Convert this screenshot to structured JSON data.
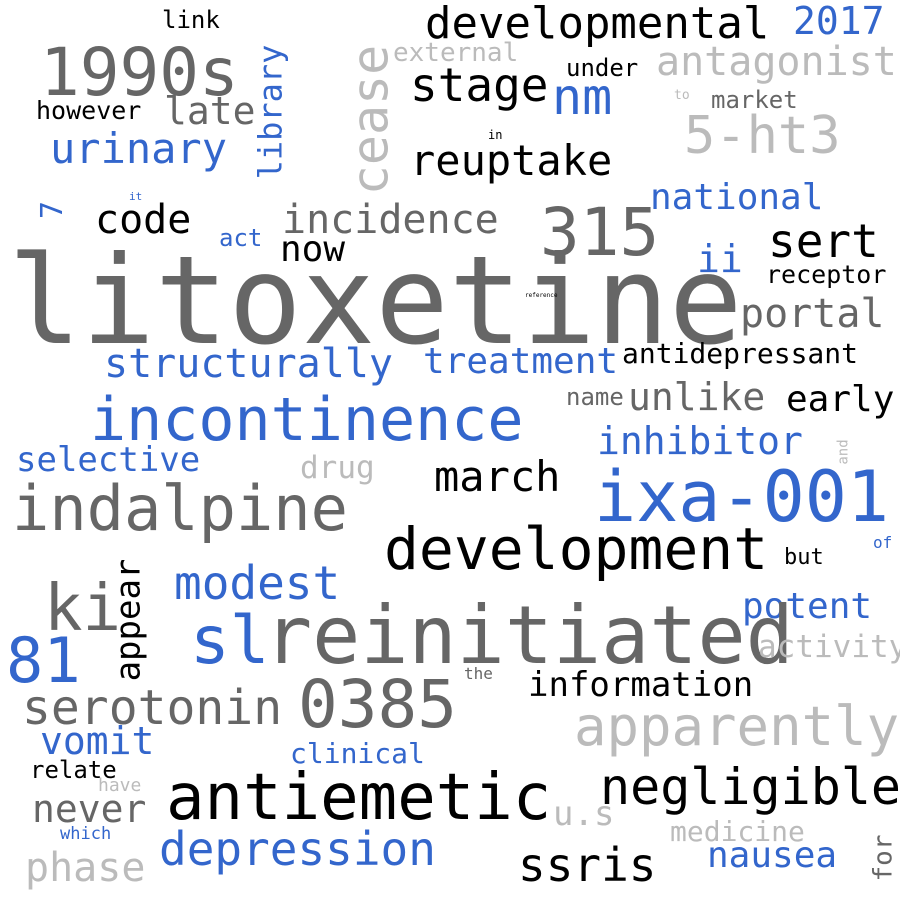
{
  "colors": {
    "dark": "#666666",
    "black": "#000000",
    "blue": "#3366cc",
    "light": "#bbbbbb"
  },
  "words": [
    {
      "id": "litoxetine",
      "text": "litoxetine",
      "color": "dark"
    },
    {
      "id": "developmental",
      "text": "developmental",
      "color": "black"
    },
    {
      "id": "1990s",
      "text": "1990s",
      "color": "dark"
    },
    {
      "id": "2017",
      "text": "2017",
      "color": "blue"
    },
    {
      "id": "link",
      "text": "link",
      "color": "black"
    },
    {
      "id": "external",
      "text": "external",
      "color": "light"
    },
    {
      "id": "antagonist",
      "text": "antagonist",
      "color": "light"
    },
    {
      "id": "stage",
      "text": "stage",
      "color": "black"
    },
    {
      "id": "nm",
      "text": "nm",
      "color": "blue"
    },
    {
      "id": "under",
      "text": "under",
      "color": "black"
    },
    {
      "id": "to",
      "text": "to",
      "color": "light"
    },
    {
      "id": "market",
      "text": "market",
      "color": "dark"
    },
    {
      "id": "however",
      "text": "however",
      "color": "black"
    },
    {
      "id": "late",
      "text": "late",
      "color": "dark"
    },
    {
      "id": "5-ht3",
      "text": "5-ht3",
      "color": "light"
    },
    {
      "id": "library",
      "text": "library",
      "color": "blue"
    },
    {
      "id": "cease",
      "text": "cease",
      "color": "light"
    },
    {
      "id": "urinary",
      "text": "urinary",
      "color": "blue"
    },
    {
      "id": "in",
      "text": "in",
      "color": "black"
    },
    {
      "id": "reuptake",
      "text": "reuptake",
      "color": "black"
    },
    {
      "id": "it",
      "text": "it",
      "color": "blue"
    },
    {
      "id": "national",
      "text": "national",
      "color": "blue"
    },
    {
      "id": "7",
      "text": "7",
      "color": "blue"
    },
    {
      "id": "code",
      "text": "code",
      "color": "black"
    },
    {
      "id": "incidence",
      "text": "incidence",
      "color": "dark"
    },
    {
      "id": "315",
      "text": "315",
      "color": "dark"
    },
    {
      "id": "sert",
      "text": "sert",
      "color": "black"
    },
    {
      "id": "act",
      "text": "act",
      "color": "blue"
    },
    {
      "id": "now",
      "text": "now",
      "color": "black"
    },
    {
      "id": "ii",
      "text": "ii",
      "color": "blue"
    },
    {
      "id": "receptor",
      "text": "receptor",
      "color": "black"
    },
    {
      "id": "reference",
      "text": "reference",
      "color": "black"
    },
    {
      "id": "portal",
      "text": "portal",
      "color": "dark"
    },
    {
      "id": "structurally",
      "text": "structurally",
      "color": "blue"
    },
    {
      "id": "treatment",
      "text": "treatment",
      "color": "blue"
    },
    {
      "id": "antidepressant",
      "text": "antidepressant",
      "color": "black"
    },
    {
      "id": "name",
      "text": "name",
      "color": "dark"
    },
    {
      "id": "unlike",
      "text": "unlike",
      "color": "dark"
    },
    {
      "id": "early",
      "text": "early",
      "color": "black"
    },
    {
      "id": "incontinence",
      "text": "incontinence",
      "color": "blue"
    },
    {
      "id": "inhibitor",
      "text": "inhibitor",
      "color": "blue"
    },
    {
      "id": "and",
      "text": "and",
      "color": "light"
    },
    {
      "id": "selective",
      "text": "selective",
      "color": "blue"
    },
    {
      "id": "drug",
      "text": "drug",
      "color": "light"
    },
    {
      "id": "march",
      "text": "march",
      "color": "black"
    },
    {
      "id": "indalpine",
      "text": "indalpine",
      "color": "dark"
    },
    {
      "id": "ixa-001",
      "text": "ixa-001",
      "color": "blue"
    },
    {
      "id": "development",
      "text": "development",
      "color": "black"
    },
    {
      "id": "but",
      "text": "but",
      "color": "black"
    },
    {
      "id": "of",
      "text": "of",
      "color": "blue"
    },
    {
      "id": "ki",
      "text": "ki",
      "color": "dark"
    },
    {
      "id": "appear",
      "text": "appear",
      "color": "black"
    },
    {
      "id": "modest",
      "text": "modest",
      "color": "blue"
    },
    {
      "id": "potent",
      "text": "potent",
      "color": "blue"
    },
    {
      "id": "81",
      "text": "81",
      "color": "blue"
    },
    {
      "id": "sl",
      "text": "sl",
      "color": "blue"
    },
    {
      "id": "reinitiated",
      "text": "reinitiated",
      "color": "dark"
    },
    {
      "id": "activity",
      "text": "activity",
      "color": "light"
    },
    {
      "id": "the",
      "text": "the",
      "color": "dark"
    },
    {
      "id": "information",
      "text": "information",
      "color": "black"
    },
    {
      "id": "serotonin",
      "text": "serotonin",
      "color": "dark"
    },
    {
      "id": "0385",
      "text": "0385",
      "color": "dark"
    },
    {
      "id": "apparently",
      "text": "apparently",
      "color": "light"
    },
    {
      "id": "vomit",
      "text": "vomit",
      "color": "blue"
    },
    {
      "id": "clinical",
      "text": "clinical",
      "color": "blue"
    },
    {
      "id": "relate",
      "text": "relate",
      "color": "black"
    },
    {
      "id": "have",
      "text": "have",
      "color": "light"
    },
    {
      "id": "antiemetic",
      "text": "antiemetic",
      "color": "black"
    },
    {
      "id": "negligible",
      "text": "negligible",
      "color": "black"
    },
    {
      "id": "never",
      "text": "never",
      "color": "dark"
    },
    {
      "id": "u.s",
      "text": "u.s",
      "color": "light"
    },
    {
      "id": "medicine",
      "text": "medicine",
      "color": "light"
    },
    {
      "id": "which",
      "text": "which",
      "color": "blue"
    },
    {
      "id": "depression",
      "text": "depression",
      "color": "blue"
    },
    {
      "id": "ssris",
      "text": "ssris",
      "color": "black"
    },
    {
      "id": "nausea",
      "text": "nausea",
      "color": "blue"
    },
    {
      "id": "for",
      "text": "for",
      "color": "dark"
    },
    {
      "id": "phase",
      "text": "phase",
      "color": "light"
    }
  ]
}
